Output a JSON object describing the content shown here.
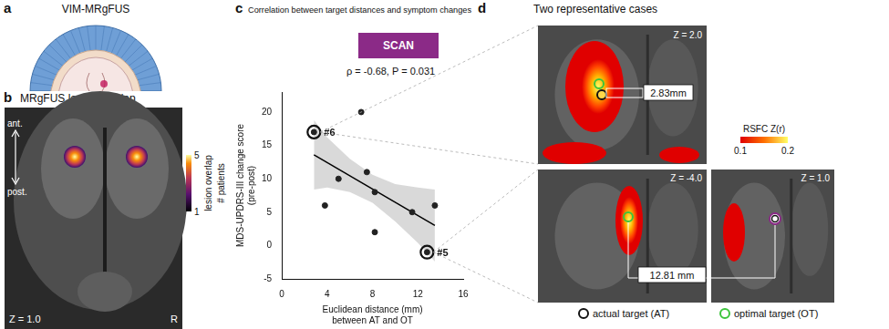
{
  "figure": {
    "panels": [
      {
        "letter": "a",
        "title": "VIM-MRgFUS"
      },
      {
        "letter": "b",
        "title": "MRgFUS lesion overlap",
        "direction_labels": [
          "ant.",
          "post."
        ],
        "slice": "Z = 1.0",
        "side": "R",
        "colorbar": {
          "title": "lesion overlap",
          "subtitle": "# patients",
          "range": [
            1,
            5
          ],
          "ticks": [
            1,
            5
          ]
        }
      },
      {
        "letter": "c",
        "title": "Correlation between target distances and symptom changes"
      },
      {
        "letter": "d",
        "title": "Two representative cases",
        "cases": [
          {
            "slices": [
              "Z = 2.0"
            ],
            "distance_label": "2.83mm"
          },
          {
            "slices": [
              "Z = -4.0",
              "Z = 1.0"
            ],
            "distance_label": "12.81 mm"
          }
        ],
        "colorbar": {
          "title": "RSFC Z(r)",
          "range": [
            0.1,
            0.2
          ],
          "ticks": [
            0.1,
            0.2
          ]
        },
        "legend": [
          {
            "name": "actual target (AT)",
            "color": "#111111"
          },
          {
            "name": "optimal target (OT)",
            "color": "#3cc43c"
          }
        ]
      }
    ]
  },
  "chart_data": {
    "type": "scatter",
    "badge": "SCAN",
    "annotation": "ρ = -0.68, P = 0.031",
    "x_label": [
      "Euclidean distance (mm)",
      "between AT and OT"
    ],
    "y_label": [
      "MDS-UPDRS-III change score",
      "(pre-post)"
    ],
    "x": [
      2.83,
      3.8,
      5,
      7,
      7.5,
      8.2,
      8.2,
      11.5,
      12.81,
      13.5
    ],
    "values": [
      17,
      6,
      10,
      20,
      11,
      8,
      2,
      5,
      -1,
      6
    ],
    "point_labels": [
      "#6",
      null,
      null,
      null,
      null,
      null,
      null,
      null,
      "#5",
      null
    ],
    "color": "#222222",
    "fit": {
      "x": [
        2.83,
        13.5
      ],
      "values": [
        13.6,
        3.0
      ]
    },
    "band": {
      "x": [
        2.83,
        4,
        6,
        8,
        10,
        12,
        13.5
      ],
      "lower": [
        8.4,
        8.7,
        8.0,
        6.4,
        3.6,
        0.4,
        -2.4
      ],
      "upper": [
        18.8,
        16.2,
        13.0,
        10.6,
        9.2,
        8.7,
        8.4
      ]
    },
    "xlim": [
      0,
      16
    ],
    "xticks": [
      0,
      4,
      8,
      12,
      16
    ],
    "ylim": [
      -5,
      23
    ],
    "yticks": [
      -5,
      0,
      5,
      10,
      15,
      20
    ],
    "grid": false
  }
}
